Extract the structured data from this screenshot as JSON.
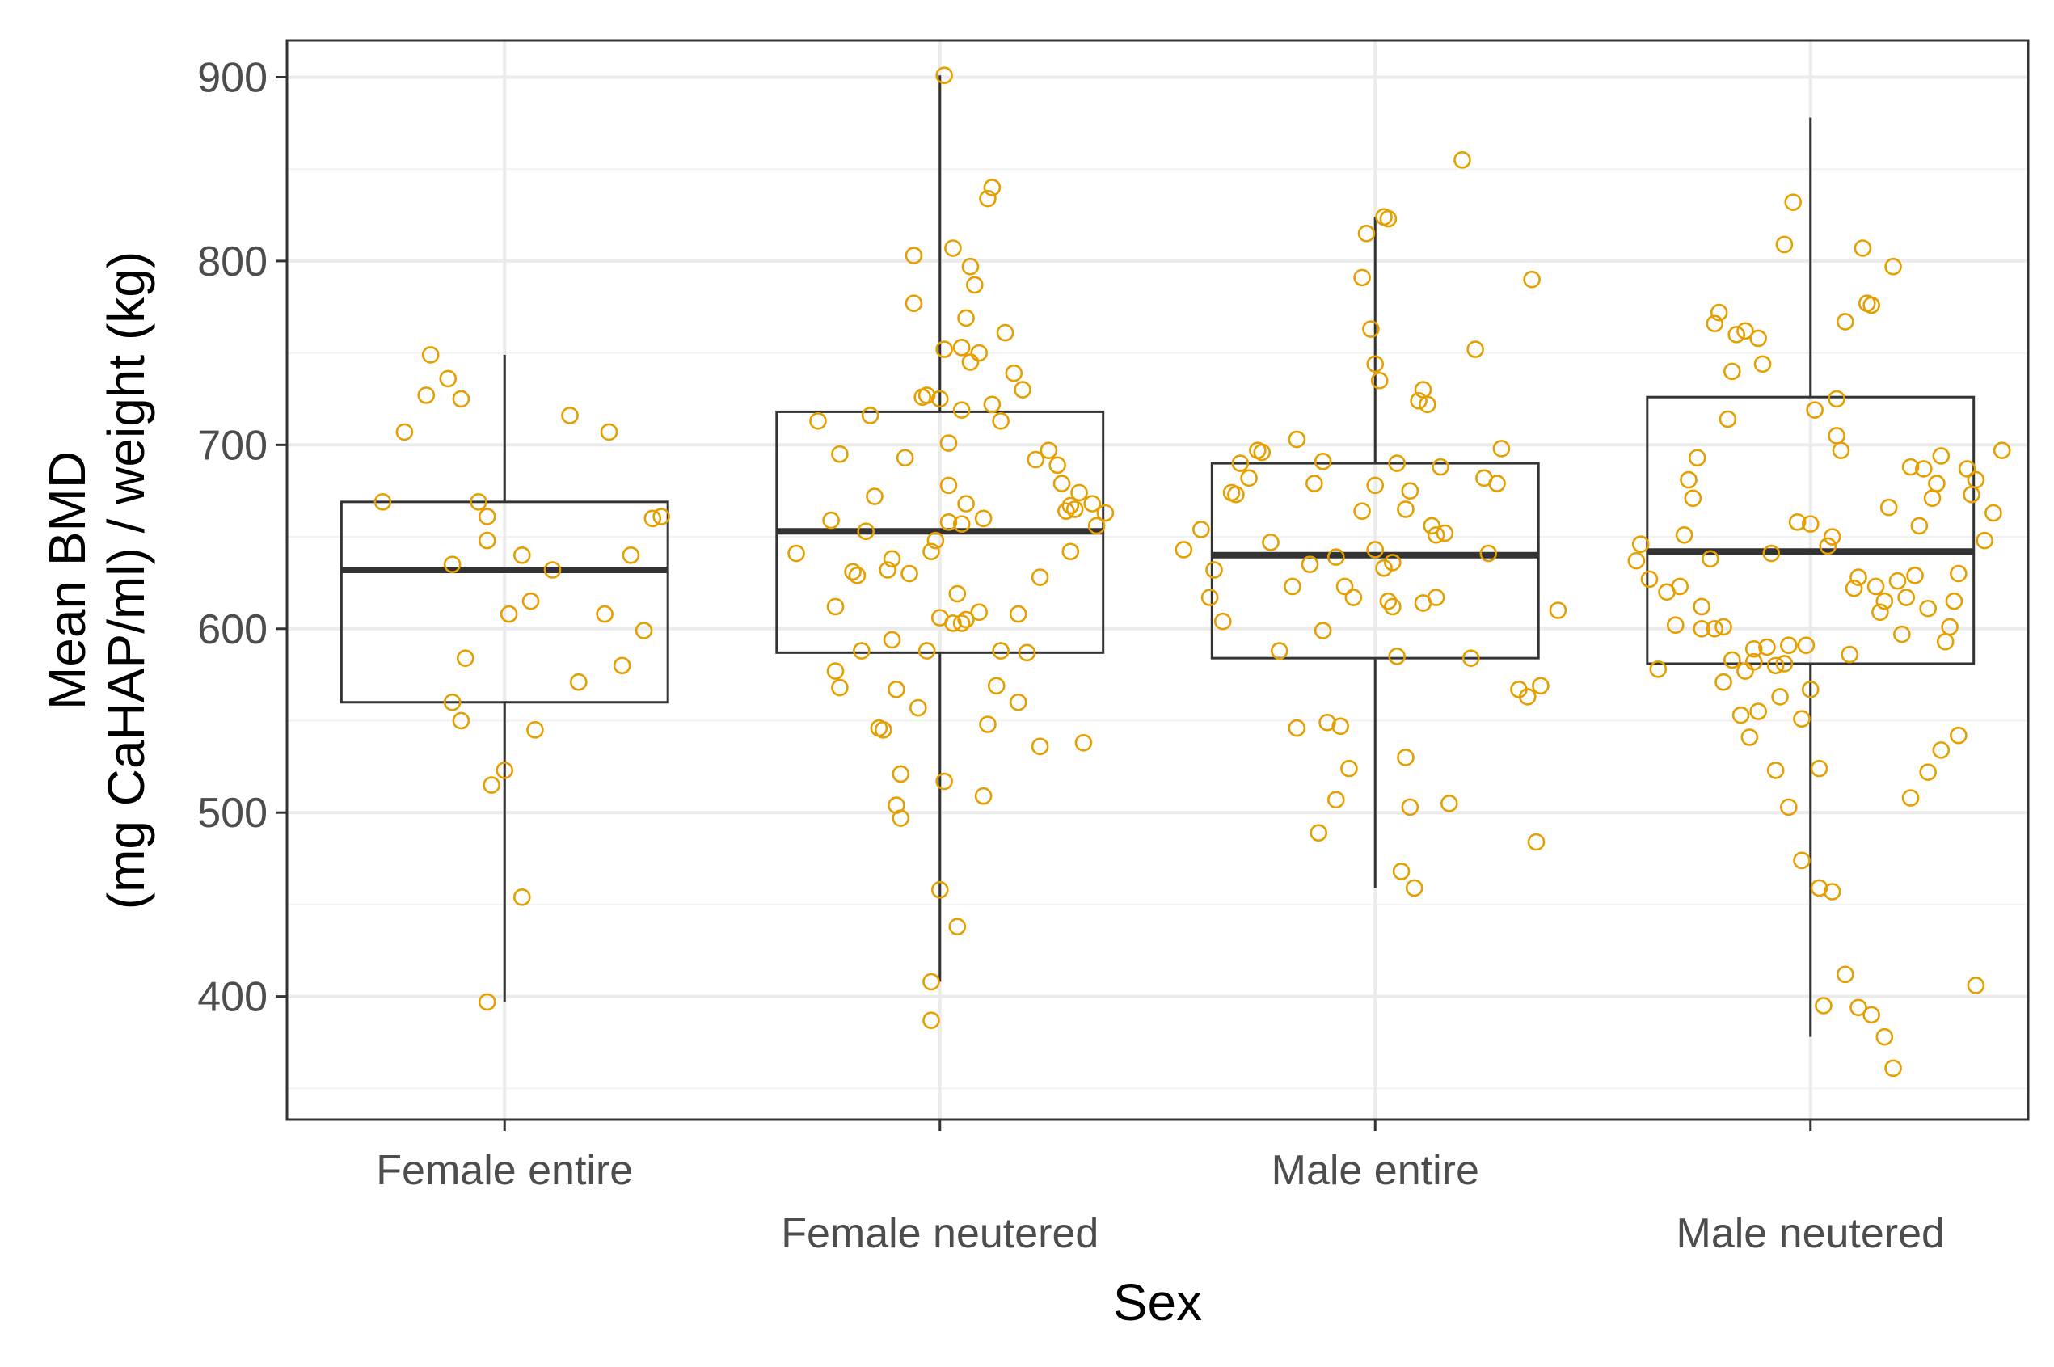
{
  "chart_data": {
    "type": "box",
    "title": "",
    "xlabel": "Sex",
    "ylabel": [
      "Mean BMD",
      "(mg CaHAP/ml) / weight (kg)"
    ],
    "ylim": [
      333,
      920
    ],
    "yticks": [
      400,
      500,
      600,
      700,
      800,
      900
    ],
    "grid": true,
    "categories": [
      "Female entire",
      "Female neutered",
      "Male entire",
      "Male neutered"
    ],
    "colors": {
      "points": "#E69F00",
      "box": "#333333",
      "grid": "#ebebeb",
      "panel_border": "#333333"
    },
    "boxes": [
      {
        "name": "Female entire",
        "whisker_low": 397,
        "q1": 560,
        "median": 632,
        "q3": 669,
        "whisker_high": 749
      },
      {
        "name": "Female neutered",
        "whisker_low": 408,
        "q1": 587,
        "median": 653,
        "q3": 718,
        "whisker_high": 901
      },
      {
        "name": "Male entire",
        "whisker_low": 459,
        "q1": 584,
        "median": 640,
        "q3": 690,
        "whisker_high": 824
      },
      {
        "name": "Male neutered",
        "whisker_low": 378,
        "q1": 581,
        "median": 642,
        "q3": 726,
        "whisker_high": 878
      }
    ],
    "points": [
      {
        "category": "Female entire",
        "jitter": [
          -0.28,
          -0.23,
          -0.18,
          -0.17,
          -0.13,
          -0.12,
          -0.09,
          -0.12,
          -0.1,
          -0.1,
          -0.06,
          -0.04,
          -0.04,
          -0.03,
          0,
          0.01,
          0.04,
          0.04,
          0.06,
          0.07,
          0.11,
          0.15,
          0.17,
          0.23,
          0.24,
          0.27,
          0.29,
          0.32,
          0.34,
          0.36,
          -0.04
        ],
        "values": [
          669,
          707,
          727,
          749,
          736,
          635,
          584,
          560,
          550,
          725,
          669,
          648,
          661,
          515,
          523,
          608,
          454,
          640,
          615,
          545,
          632,
          716,
          571,
          608,
          707,
          580,
          640,
          599,
          660,
          661,
          397
        ]
      },
      {
        "category": "Female neutered",
        "jitter": [
          -0.33,
          -0.28,
          -0.24,
          -0.24,
          -0.23,
          -0.23,
          -0.2,
          -0.19,
          -0.18,
          -0.16,
          -0.15,
          -0.14,
          -0.13,
          -0.12,
          -0.11,
          -0.11,
          -0.1,
          -0.1,
          -0.09,
          -0.09,
          -0.07,
          -0.06,
          -0.06,
          -0.05,
          -0.04,
          -0.03,
          -0.03,
          -0.01,
          0,
          0.01,
          0.02,
          0.03,
          0.04,
          0.05,
          0.05,
          0.06,
          0.07,
          0.08,
          0.09,
          0.1,
          0.11,
          0.12,
          0.13,
          0.14,
          0.15,
          0.17,
          0.19,
          0.22,
          0.25,
          0.27,
          0.29,
          0.3,
          0.3,
          0.36,
          0.38,
          -0.02,
          0.02,
          0.05,
          0.07,
          0.09,
          0.12,
          0.18,
          0.2,
          0.23,
          0.28,
          0.31,
          0.32,
          0.33,
          0.35,
          -0.25,
          -0.17,
          -0.08,
          0,
          0.06
        ],
        "values": [
          641,
          713,
          612,
          577,
          695,
          568,
          631,
          629,
          588,
          716,
          672,
          546,
          545,
          632,
          594,
          638,
          567,
          504,
          497,
          521,
          630,
          803,
          777,
          557,
          726,
          588,
          727,
          648,
          606,
          752,
          658,
          603,
          619,
          603,
          753,
          769,
          797,
          787,
          609,
          660,
          834,
          840,
          569,
          713,
          761,
          739,
          730,
          692,
          697,
          689,
          664,
          667,
          642,
          656,
          663,
          642,
          701,
          719,
          745,
          750,
          722,
          608,
          587,
          628,
          679,
          665,
          674,
          538,
          668,
          659,
          653,
          693,
          725,
          668
        ],
        "extra": [
          {
            "jitter": -0.02,
            "value": 408
          },
          {
            "jitter": 0.0,
            "value": 458
          },
          {
            "jitter": 0.04,
            "value": 438
          },
          {
            "jitter": -0.02,
            "value": 387
          },
          {
            "jitter": 0.01,
            "value": 901
          },
          {
            "jitter": 0.01,
            "value": 517
          },
          {
            "jitter": 0.11,
            "value": 548
          },
          {
            "jitter": 0.18,
            "value": 560
          },
          {
            "jitter": 0.14,
            "value": 588
          },
          {
            "jitter": 0.23,
            "value": 536
          },
          {
            "jitter": 0.1,
            "value": 509
          },
          {
            "jitter": 0.06,
            "value": 605
          },
          {
            "jitter": 0.05,
            "value": 657
          },
          {
            "jitter": 0.02,
            "value": 678
          },
          {
            "jitter": 0.03,
            "value": 807
          }
        ]
      },
      {
        "category": "Male entire",
        "jitter": [
          -0.44,
          -0.4,
          -0.38,
          -0.37,
          -0.35,
          -0.33,
          -0.31,
          -0.29,
          -0.27,
          -0.24,
          -0.22,
          -0.19,
          -0.18,
          -0.15,
          -0.13,
          -0.11,
          -0.09,
          -0.08,
          -0.07,
          -0.05,
          -0.03,
          -0.02,
          -0.01,
          0,
          0.01,
          0.02,
          0.03,
          0.04,
          0.05,
          0.06,
          0.07,
          0.08,
          0.09,
          0.1,
          0.11,
          0.12,
          0.13,
          0.14,
          0.16,
          0.17,
          0.2,
          0.23,
          0.25,
          0.28,
          0.29,
          0.33,
          0.35,
          0.36,
          0.37,
          0.38,
          0.42,
          -0.12,
          -0.09,
          -0.06,
          -0.03,
          0.0,
          0.03,
          0.08,
          0.11,
          0.14,
          0.05,
          -0.14,
          -0.18,
          0.02,
          0.04,
          0.07,
          -0.12,
          0.0,
          0.15,
          -0.32,
          -0.26,
          0.22,
          0.26
        ],
        "values": [
          643,
          654,
          617,
          632,
          604,
          674,
          690,
          682,
          697,
          647,
          588,
          623,
          546,
          635,
          489,
          549,
          507,
          547,
          623,
          617,
          791,
          815,
          763,
          744,
          735,
          824,
          615,
          612,
          585,
          468,
          530,
          675,
          459,
          724,
          730,
          722,
          656,
          651,
          652,
          505,
          855,
          752,
          682,
          679,
          698,
          567,
          563,
          790,
          484,
          569,
          610,
          599,
          639,
          524,
          664,
          643,
          823,
          503,
          614,
          617,
          690,
          679,
          703,
          633,
          636,
          665,
          691,
          678,
          688,
          673,
          696,
          584,
          641
        ]
      },
      {
        "category": "Male neutered",
        "jitter": [
          -0.4,
          -0.39,
          -0.37,
          -0.35,
          -0.33,
          -0.31,
          -0.29,
          -0.28,
          -0.27,
          -0.26,
          -0.25,
          -0.23,
          -0.22,
          -0.21,
          -0.2,
          -0.19,
          -0.18,
          -0.17,
          -0.16,
          -0.15,
          -0.14,
          -0.13,
          -0.12,
          -0.11,
          -0.1,
          -0.09,
          -0.08,
          -0.07,
          -0.06,
          -0.05,
          -0.04,
          -0.03,
          -0.02,
          -0.01,
          0,
          0.01,
          0.02,
          0.03,
          0.04,
          0.05,
          0.06,
          0.07,
          0.08,
          0.09,
          0.1,
          0.11,
          0.12,
          0.13,
          0.14,
          0.15,
          0.16,
          0.17,
          0.18,
          0.19,
          0.2,
          0.21,
          0.22,
          0.23,
          0.24,
          0.25,
          0.26,
          0.27,
          0.28,
          0.29,
          0.3,
          0.31,
          0.32,
          0.33,
          0.34,
          0.36,
          0.37,
          0.38,
          0.4,
          0.42,
          0.44,
          -0.3,
          -0.25,
          -0.2,
          -0.15,
          -0.12,
          -0.08,
          -0.05,
          -0.02,
          0.02,
          0.05,
          0.08,
          0.11,
          0.14,
          0.17,
          0.19,
          0.23,
          0.27,
          0.3,
          0.34,
          0.38,
          -0.22,
          -0.18,
          -0.13,
          -0.06,
          0.0,
          0.06
        ],
        "values": [
          637,
          646,
          627,
          578,
          620,
          602,
          651,
          681,
          671,
          693,
          612,
          638,
          766,
          772,
          601,
          714,
          740,
          760,
          553,
          762,
          541,
          582,
          758,
          744,
          590,
          641,
          580,
          563,
          809,
          591,
          832,
          658,
          551,
          591,
          567,
          719,
          524,
          395,
          645,
          650,
          725,
          697,
          767,
          586,
          622,
          628,
          807,
          777,
          776,
          623,
          609,
          615,
          666,
          797,
          626,
          597,
          617,
          688,
          629,
          656,
          687,
          611,
          671,
          679,
          694,
          593,
          601,
          615,
          630,
          687,
          673,
          681,
          648,
          663,
          697,
          623,
          600,
          571,
          577,
          555,
          523,
          503,
          474,
          459,
          457,
          412,
          394,
          390,
          378,
          361,
          508,
          522,
          534,
          542,
          406,
          600,
          583,
          589,
          581,
          657,
          705
        ]
      }
    ]
  }
}
